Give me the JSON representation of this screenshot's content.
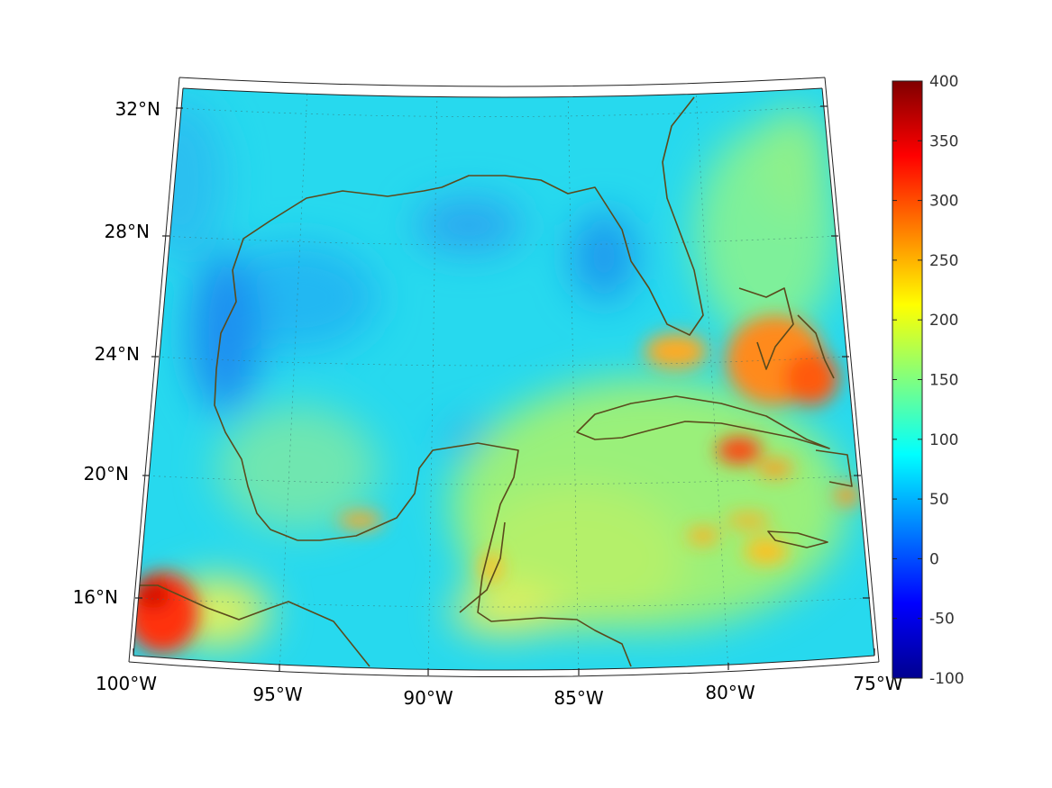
{
  "map": {
    "projection": "conic",
    "region": "Gulf of Mexico and Caribbean",
    "lon_range": [
      -100,
      -75
    ],
    "lat_range": [
      14,
      33
    ],
    "grid": true,
    "coastline_color": "#5a4a1c",
    "lat_labels": [
      "32°N",
      "28°N",
      "24°N",
      "20°N",
      "16°N"
    ],
    "lon_labels": [
      "100°W",
      "95°W",
      "90°W",
      "85°W",
      "80°W",
      "75°W"
    ],
    "lat_values": [
      32,
      28,
      24,
      20,
      16
    ],
    "lon_values": [
      -100,
      -95,
      -90,
      -85,
      -80,
      -75
    ]
  },
  "colorbar": {
    "colormap": "jet",
    "range": [
      -100,
      400
    ],
    "tick_labels": [
      "400",
      "350",
      "300",
      "250",
      "200",
      "150",
      "100",
      "50",
      "0",
      "-50",
      "-100"
    ],
    "tick_values": [
      400,
      350,
      300,
      250,
      200,
      150,
      100,
      50,
      0,
      -50,
      -100
    ],
    "placement": "right"
  }
}
